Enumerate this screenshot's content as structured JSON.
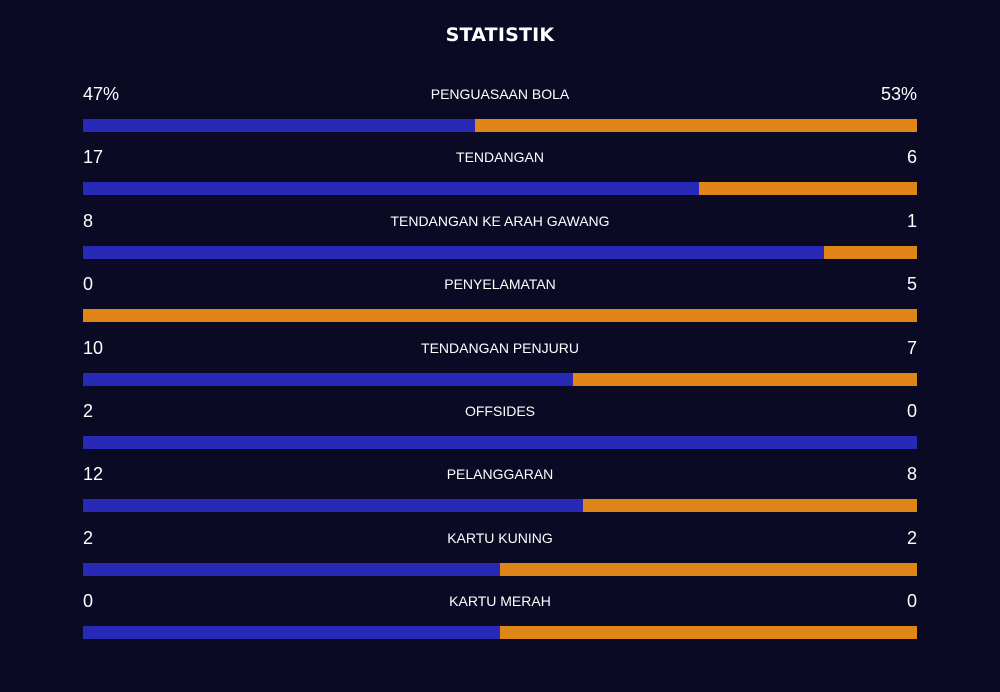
{
  "title": "STATISTIK",
  "colors": {
    "background": "#0a0a24",
    "home": "#2929b8",
    "away": "#e08619"
  },
  "stats": [
    {
      "label": "PENGUASAAN BOLA",
      "home": "47%",
      "away": "53%",
      "home_share": 0.47
    },
    {
      "label": "TENDANGAN",
      "home": "17",
      "away": "6",
      "home_share": 0.739
    },
    {
      "label": "TENDANGAN KE ARAH GAWANG",
      "home": "8",
      "away": "1",
      "home_share": 0.889
    },
    {
      "label": "PENYELAMATAN",
      "home": "0",
      "away": "5",
      "home_share": 0.0
    },
    {
      "label": "TENDANGAN PENJURU",
      "home": "10",
      "away": "7",
      "home_share": 0.588
    },
    {
      "label": "OFFSIDES",
      "home": "2",
      "away": "0",
      "home_share": 1.0
    },
    {
      "label": "PELANGGARAN",
      "home": "12",
      "away": "8",
      "home_share": 0.6
    },
    {
      "label": "KARTU KUNING",
      "home": "2",
      "away": "2",
      "home_share": 0.5
    },
    {
      "label": "KARTU MERAH",
      "home": "0",
      "away": "0",
      "home_share": 0.5
    }
  ]
}
